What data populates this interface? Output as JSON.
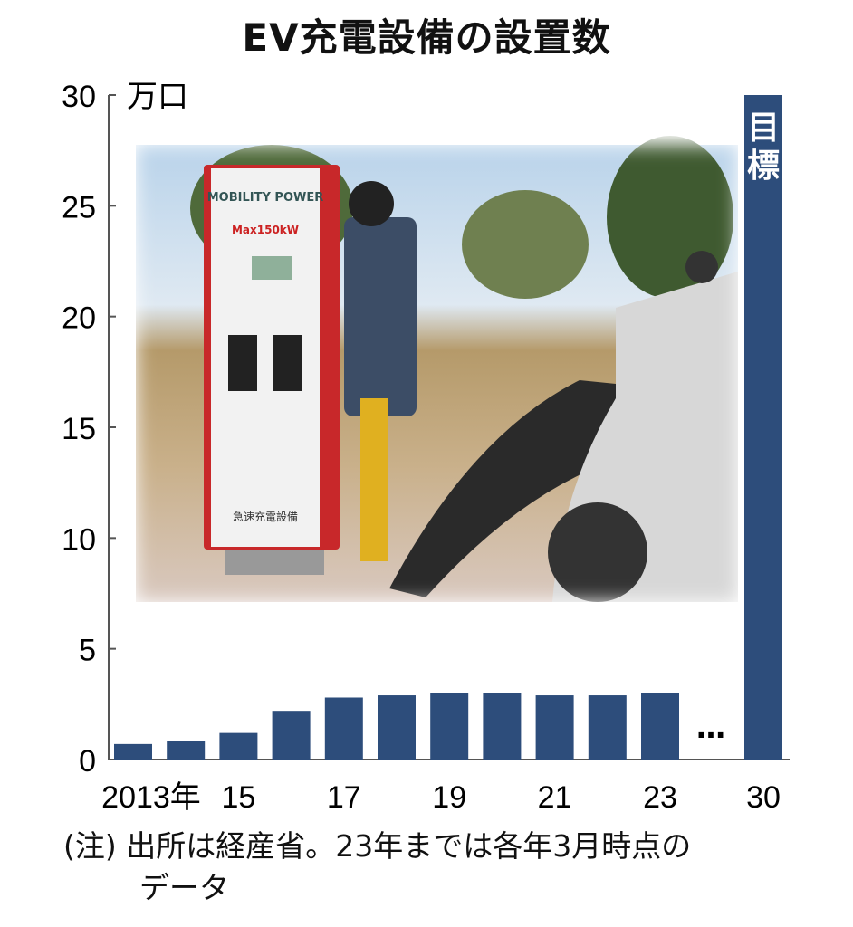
{
  "title": "EV充電設備の設置数",
  "photo": {
    "description_icon": "ev-charger-photo",
    "charger_brand": "MOBILITY POWER",
    "charger_rating": "Max150kW",
    "charger_label": "急速充電設備"
  },
  "note": {
    "line1": "(注) 出所は経産省。23年までは各年3月時点の",
    "line2": "データ"
  },
  "colors": {
    "bar": "#2d4d7b",
    "axis": "#555555",
    "target_label": "#ffffff"
  },
  "chart_data": {
    "type": "bar",
    "title": "EV充電設備の設置数",
    "ylabel": "万口",
    "ylim": [
      0,
      30
    ],
    "yticks": [
      0,
      5,
      10,
      15,
      20,
      25,
      30
    ],
    "categories": [
      "2013",
      "2014",
      "2015",
      "2016",
      "2017",
      "2018",
      "2019",
      "2020",
      "2021",
      "2022",
      "2023",
      "2030"
    ],
    "xtick_labels": [
      {
        "category": "2013",
        "label": "2013年"
      },
      {
        "category": "2015",
        "label": "15"
      },
      {
        "category": "2017",
        "label": "17"
      },
      {
        "category": "2019",
        "label": "19"
      },
      {
        "category": "2021",
        "label": "21"
      },
      {
        "category": "2023",
        "label": "23"
      },
      {
        "category": "2030",
        "label": "30"
      }
    ],
    "values": [
      0.7,
      0.85,
      1.2,
      2.2,
      2.8,
      2.9,
      3.0,
      3.0,
      2.9,
      2.9,
      3.0,
      30
    ],
    "annotations": [
      {
        "category": "2030",
        "text": "目標"
      },
      {
        "between": [
          "2023",
          "2030"
        ],
        "text": "…"
      }
    ],
    "grid": false
  }
}
